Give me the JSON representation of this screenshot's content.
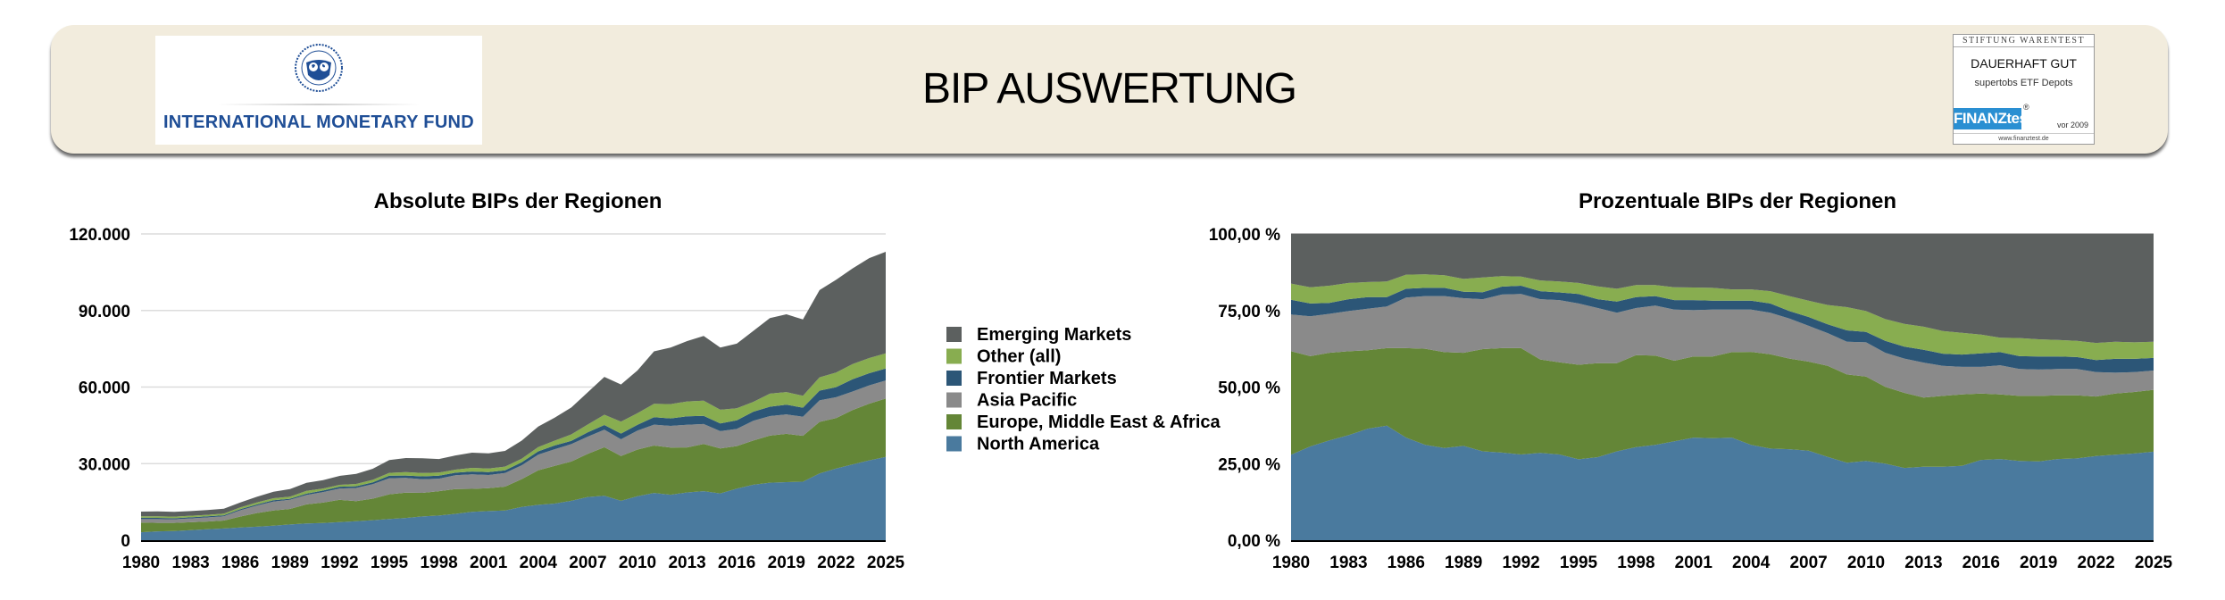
{
  "header": {
    "title": "BIP AUSWERTUNG",
    "left_logo": {
      "icon": "imf-seal-icon",
      "text": "INTERNATIONAL MONETARY FUND",
      "color": "#1f4e96"
    },
    "right_badge": {
      "top": "STIFTUNG WARENTEST",
      "main": "DAUERHAFT GUT",
      "sub": "supertobs ETF Depots",
      "logo_text": "FINANZtest",
      "reg": "®",
      "year": "vor 2009",
      "url": "www.finanztest.de"
    }
  },
  "legend": {
    "items": [
      {
        "label": "Emerging Markets",
        "color": "#5c605f"
      },
      {
        "label": "Other (all)",
        "color": "#88ad50"
      },
      {
        "label": "Frontier Markets",
        "color": "#2c5677"
      },
      {
        "label": "Asia Pacific",
        "color": "#8a8a8a"
      },
      {
        "label": "Europe, Middle East & Africa",
        "color": "#648637"
      },
      {
        "label": "North America",
        "color": "#4a7a9e"
      }
    ]
  },
  "chart_data": [
    {
      "type": "area",
      "stacked": true,
      "title": "Absolute BIPs der Regionen",
      "xlabel": "",
      "ylabel": "",
      "ylim": [
        0,
        120000
      ],
      "yticks": [
        "0",
        "30.000",
        "60.000",
        "90.000",
        "120.000"
      ],
      "ytick_values": [
        0,
        30000,
        60000,
        90000,
        120000
      ],
      "xticks": [
        "1980",
        "1983",
        "1986",
        "1989",
        "1992",
        "1995",
        "1998",
        "2001",
        "2004",
        "2007",
        "2010",
        "2013",
        "2016",
        "2019",
        "2022",
        "2025"
      ],
      "grid": true,
      "legend": "right",
      "x": [
        1980,
        1981,
        1982,
        1983,
        1984,
        1985,
        1986,
        1987,
        1988,
        1989,
        1990,
        1991,
        1992,
        1993,
        1994,
        1995,
        1996,
        1997,
        1998,
        1999,
        2000,
        2001,
        2002,
        2003,
        2004,
        2005,
        2006,
        2007,
        2008,
        2009,
        2010,
        2011,
        2012,
        2013,
        2014,
        2015,
        2016,
        2017,
        2018,
        2019,
        2020,
        2021,
        2022,
        2023,
        2024,
        2025
      ],
      "series": [
        {
          "name": "North America",
          "values": [
            3125,
            3458,
            3619,
            3910,
            4295,
            4600,
            4958,
            5287,
            5719,
            6160,
            6525,
            6721,
            7056,
            7410,
            7840,
            8290,
            8726,
            9309,
            9667,
            10325,
            11079,
            11390,
            11655,
            13065,
            13840,
            14352,
            15444,
            16936,
            17408,
            15433,
            17224,
            18500,
            17818,
            18720,
            19200,
            18347,
            20174,
            21730,
            22533,
            22745,
            22923,
            26166,
            28050,
            29714,
            31272,
            32657
          ]
        },
        {
          "name": "Europe, Middle East & Africa",
          "values": [
            3786,
            3334,
            3175,
            3124,
            3021,
            3112,
            4322,
            5338,
            5947,
            6080,
            7515,
            8014,
            8744,
            7930,
            8428,
            9703,
            9885,
            9245,
            9540,
            9694,
            9021,
            9010,
            9345,
            10881,
            13528,
            14784,
            15392,
            16878,
            19008,
            17568,
            18288,
            18574,
            18498,
            17628,
            18480,
            17592,
            16709,
            17302,
            18444,
            18939,
            17992,
            20188,
            19788,
            21300,
            22211,
            22826
          ]
        },
        {
          "name": "Asia Pacific",
          "values": [
            1344,
            1469,
            1410,
            1493,
            1605,
            1673,
            2442,
            2924,
            3477,
            3560,
            3668,
            4113,
            4460,
            5122,
            5684,
            6280,
            5796,
            5297,
            4897,
            5412,
            5728,
            5134,
            5355,
            5421,
            6141,
            6528,
            6812,
            6786,
            6848,
            6527,
            7448,
            8214,
            8456,
            8892,
            7840,
            6795,
            6699,
            7790,
            7656,
            7611,
            7439,
            8428,
            8160,
            7242,
            7183,
            7119
          ]
        },
        {
          "name": "Frontier Markets",
          "values": [
            538,
            475,
            400,
            445,
            448,
            381,
            429,
            459,
            513,
            420,
            518,
            611,
            680,
            676,
            700,
            973,
            934,
            1156,
            1145,
            1029,
            1063,
            1122,
            1015,
            1131,
            1291,
            1440,
            1248,
            1682,
            1856,
            2257,
            2261,
            2886,
            2945,
            3276,
            3200,
            3020,
            3388,
            3526,
            3654,
            3806,
            3547,
            3822,
            3978,
            4793,
            4752,
            4633
          ]
        },
        {
          "name": "Other (all)",
          "values": [
            594,
            599,
            622,
            604,
            578,
            627,
            681,
            748,
            779,
            840,
            1080,
            799,
            756,
            910,
            1008,
            1130,
            1352,
            1348,
            1240,
            1195,
            1441,
            1394,
            1470,
            1443,
            1647,
            1920,
            2548,
            3074,
            4032,
            4636,
            4522,
            5254,
            5587,
            5850,
            5920,
            5361,
            4697,
            3854,
            5133,
            4956,
            4671,
            5194,
            5712,
            5964,
            5967,
            5989
          ]
        },
        {
          "name": "Emerging Markets",
          "values": [
            1814,
            1966,
            1876,
            1824,
            1853,
            1907,
            1968,
            2244,
            2565,
            2940,
            3195,
            3243,
            3503,
            3952,
            4340,
            5024,
            5506,
            5746,
            5311,
            5544,
            5968,
            5950,
            6160,
            7059,
            8055,
            8976,
            10556,
            12644,
            14848,
            14579,
            16758,
            20572,
            22197,
            23634,
            25360,
            24386,
            25333,
            27798,
            29580,
            30444,
            29929,
            34202,
            36312,
            37488,
            39117,
            39776
          ]
        }
      ]
    },
    {
      "type": "area",
      "stacked": true,
      "normalized": true,
      "title": "Prozentuale BIPs der Regionen",
      "xlabel": "",
      "ylabel": "",
      "ylim": [
        0,
        100
      ],
      "yticks": [
        "0,00 %",
        "25,00 %",
        "50,00 %",
        "75,00 %",
        "100,00 %"
      ],
      "ytick_values": [
        0,
        25,
        50,
        75,
        100
      ],
      "xticks": [
        "1980",
        "1983",
        "1986",
        "1989",
        "1992",
        "1995",
        "1998",
        "2001",
        "2004",
        "2007",
        "2010",
        "2013",
        "2016",
        "2019",
        "2022",
        "2025"
      ],
      "grid": false,
      "legend": "left",
      "x": [
        1980,
        1981,
        1982,
        1983,
        1984,
        1985,
        1986,
        1987,
        1988,
        1989,
        1990,
        1991,
        1992,
        1993,
        1994,
        1995,
        1996,
        1997,
        1998,
        1999,
        2000,
        2001,
        2002,
        2003,
        2004,
        2005,
        2006,
        2007,
        2008,
        2009,
        2010,
        2011,
        2012,
        2013,
        2014,
        2015,
        2016,
        2017,
        2018,
        2019,
        2020,
        2021,
        2022,
        2023,
        2024,
        2025
      ],
      "series": [
        {
          "name": "North America",
          "values": [
            27.9,
            30.6,
            32.6,
            34.3,
            36.4,
            37.4,
            33.5,
            31.1,
            30.1,
            30.8,
            29.0,
            28.6,
            28.0,
            28.5,
            28.0,
            26.4,
            27.1,
            29.0,
            30.4,
            31.1,
            32.3,
            33.5,
            33.3,
            33.5,
            31.1,
            29.9,
            29.7,
            29.2,
            27.2,
            25.3,
            25.9,
            25.0,
            23.6,
            24.0,
            24.0,
            24.3,
            26.2,
            26.5,
            25.9,
            25.7,
            26.5,
            26.7,
            27.5,
            27.9,
            28.3,
            28.9
          ]
        },
        {
          "name": "Europe, Middle East & Africa",
          "values": [
            33.8,
            29.5,
            28.6,
            27.4,
            25.6,
            25.3,
            29.2,
            31.4,
            31.3,
            30.4,
            33.4,
            34.1,
            34.7,
            30.5,
            30.1,
            30.9,
            30.7,
            28.8,
            30.0,
            29.2,
            26.3,
            26.5,
            26.7,
            27.9,
            30.4,
            30.8,
            29.6,
            29.1,
            29.7,
            28.8,
            27.5,
            25.1,
            24.5,
            22.6,
            23.1,
            23.3,
            21.7,
            21.1,
            21.2,
            21.4,
            20.8,
            20.6,
            19.4,
            20.0,
            20.1,
            20.2
          ]
        },
        {
          "name": "Asia Pacific",
          "values": [
            12.0,
            13.0,
            12.7,
            13.1,
            13.6,
            13.6,
            16.5,
            17.2,
            18.3,
            17.8,
            16.3,
            17.5,
            17.7,
            19.7,
            20.3,
            20.0,
            18.0,
            16.5,
            15.4,
            16.3,
            16.7,
            15.1,
            15.3,
            13.9,
            13.8,
            13.6,
            13.1,
            11.7,
            10.7,
            10.7,
            11.2,
            11.1,
            11.2,
            11.4,
            9.8,
            9.0,
            8.7,
            9.5,
            8.8,
            8.6,
            8.6,
            8.6,
            8.0,
            6.8,
            6.5,
            6.3
          ]
        },
        {
          "name": "Frontier Markets",
          "values": [
            4.8,
            4.2,
            3.6,
            3.9,
            3.8,
            3.1,
            2.9,
            2.7,
            2.7,
            2.1,
            2.3,
            2.6,
            2.7,
            2.6,
            2.5,
            3.1,
            2.9,
            3.6,
            3.6,
            3.1,
            3.1,
            3.3,
            2.9,
            2.9,
            2.9,
            3.0,
            2.4,
            2.9,
            2.9,
            3.7,
            3.4,
            3.9,
            3.9,
            4.2,
            4.0,
            4.0,
            4.4,
            4.3,
            4.2,
            4.3,
            4.1,
            3.9,
            3.9,
            4.5,
            4.3,
            4.1
          ]
        },
        {
          "name": "Other (all)",
          "values": [
            5.3,
            5.3,
            5.6,
            5.3,
            4.9,
            5.1,
            4.6,
            4.4,
            4.1,
            4.2,
            4.8,
            3.4,
            3.0,
            3.5,
            3.6,
            3.6,
            4.2,
            4.2,
            3.9,
            3.6,
            4.2,
            4.1,
            4.2,
            3.7,
            3.7,
            4.0,
            4.9,
            5.3,
            6.3,
            7.6,
            6.8,
            7.1,
            7.4,
            7.5,
            7.4,
            7.1,
            6.1,
            4.7,
            5.9,
            5.6,
            5.4,
            5.3,
            5.6,
            5.6,
            5.4,
            5.3
          ]
        },
        {
          "name": "Emerging Markets",
          "values": [
            16.2,
            17.4,
            16.9,
            16.0,
            15.7,
            15.5,
            13.3,
            13.2,
            13.5,
            14.7,
            14.2,
            13.8,
            13.9,
            15.2,
            15.5,
            16.0,
            17.1,
            17.9,
            16.7,
            16.7,
            17.4,
            17.5,
            17.6,
            18.1,
            18.1,
            18.7,
            20.3,
            21.8,
            23.2,
            23.9,
            25.2,
            27.8,
            29.4,
            30.3,
            31.7,
            32.3,
            32.9,
            33.9,
            34.0,
            34.4,
            34.6,
            34.9,
            35.6,
            35.2,
            35.4,
            35.2
          ]
        }
      ]
    }
  ]
}
